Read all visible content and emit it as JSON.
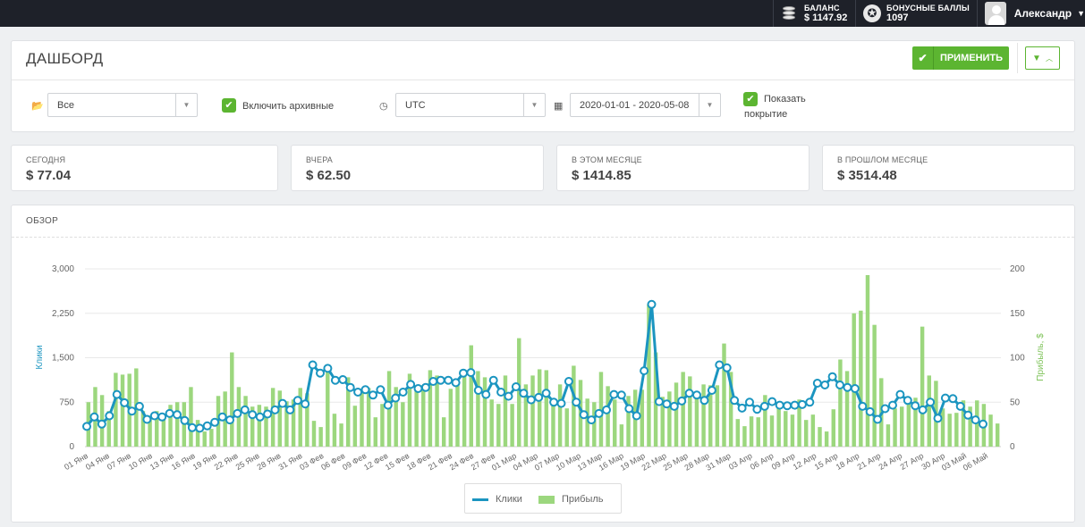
{
  "topbar": {
    "balance_label": "БАЛАНС",
    "balance_value": "$ 1147.92",
    "bonus_label": "БОНУСНЫЕ БАЛЛЫ",
    "bonus_value": "1097",
    "user_name": "Александр"
  },
  "header": {
    "title": "ДАШБОРД",
    "apply_label": "ПРИМЕНИТЬ"
  },
  "filters": {
    "folder_value": "Все",
    "include_archived_label": "Включить архивные",
    "include_archived_checked": true,
    "timezone_value": "UTC",
    "date_range_value": "2020-01-01 - 2020-05-08",
    "show_coverage_line1": "Показать",
    "show_coverage_line2": "покрытие",
    "show_coverage_checked": true
  },
  "stats": [
    {
      "label": "СЕГОДНЯ",
      "value": "$ 77.04"
    },
    {
      "label": "ВЧЕРА",
      "value": "$ 62.50"
    },
    {
      "label": "В ЭТОМ МЕСЯЦЕ",
      "value": "$ 1414.85"
    },
    {
      "label": "В ПРОШЛОМ МЕСЯЦЕ",
      "value": "$ 3514.48"
    }
  ],
  "overview": {
    "title": "ОБЗОР",
    "legend": {
      "clicks": "Клики",
      "profit": "Прибыль"
    }
  },
  "colors": {
    "topbar": "#1e2129",
    "accent_green": "#5cb531",
    "clicks_line": "#1b95c0",
    "profit_bars": "#9cd77e"
  },
  "chart_data": {
    "type": "bar",
    "ylabel_left": "Клики",
    "ylabel_right": "Прибыль, $",
    "left_axis": {
      "min": 0,
      "max": 3000,
      "ticks": [
        0,
        750,
        1500,
        2250,
        3000
      ],
      "tick_labels": [
        "0",
        "750",
        "1,500",
        "2,250",
        "3,000"
      ]
    },
    "right_axis": {
      "min": 0,
      "max": 200,
      "ticks": [
        0,
        50,
        100,
        150,
        200
      ],
      "tick_labels": [
        "0",
        "50",
        "100",
        "150",
        "200"
      ]
    },
    "grid": true,
    "legend_position": "bottom-center",
    "x_tick_labels": [
      "01 Янв",
      "04 Янв",
      "07 Янв",
      "10 Янв",
      "13 Янв",
      "16 Янв",
      "19 Янв",
      "22 Янв",
      "25 Янв",
      "28 Янв",
      "31 Янв",
      "03 Фев",
      "06 Фев",
      "09 Фев",
      "12 Фев",
      "15 Фев",
      "18 Фев",
      "21 Фев",
      "24 Фев",
      "27 Фев",
      "01 Мар",
      "04 Мар",
      "07 Мар",
      "10 Мар",
      "13 Мар",
      "16 Мар",
      "19 Мар",
      "22 Мар",
      "25 Мар",
      "28 Мар",
      "31 Мар",
      "03 Апр",
      "06 Апр",
      "09 Апр",
      "12 Апр",
      "15 Апр",
      "18 Апр",
      "21 Апр",
      "24 Апр",
      "27 Апр",
      "30 Апр",
      "03 Май",
      "06 Май"
    ],
    "series": [
      {
        "name": "Клики",
        "type": "line",
        "axis": "left",
        "values": [
          340,
          500,
          380,
          520,
          880,
          740,
          600,
          680,
          460,
          520,
          500,
          560,
          540,
          440,
          320,
          310,
          350,
          410,
          500,
          450,
          560,
          620,
          540,
          500,
          550,
          620,
          730,
          620,
          780,
          720,
          1380,
          1240,
          1320,
          1120,
          1130,
          1000,
          920,
          960,
          870,
          960,
          700,
          820,
          920,
          1050,
          980,
          1000,
          1100,
          1120,
          1120,
          1080,
          1240,
          1250,
          950,
          880,
          1120,
          920,
          850,
          1010,
          900,
          790,
          830,
          900,
          750,
          730,
          1100,
          750,
          540,
          450,
          560,
          620,
          880,
          870,
          640,
          520,
          1280,
          2400,
          760,
          720,
          680,
          770,
          900,
          870,
          780,
          950,
          1380,
          1330,
          780,
          650,
          750,
          630,
          680,
          760,
          700,
          690,
          700,
          710,
          750,
          1070,
          1040,
          1180,
          1040,
          1000,
          980,
          680,
          590,
          460,
          640,
          700,
          880,
          780,
          690,
          620,
          750,
          480,
          820,
          810,
          680,
          530,
          450,
          380
        ]
      },
      {
        "name": "Прибыль",
        "type": "bar",
        "axis": "right",
        "values": [
          50,
          67,
          58,
          40,
          83,
          81,
          82,
          88,
          40,
          35,
          40,
          35,
          47,
          50,
          50,
          67,
          30,
          17,
          20,
          57,
          62,
          106,
          67,
          57,
          45,
          47,
          45,
          66,
          63,
          51,
          53,
          66,
          60,
          29,
          22,
          88,
          37,
          26,
          78,
          46,
          65,
          66,
          33,
          48,
          85,
          67,
          50,
          82,
          69,
          69,
          86,
          80,
          33,
          65,
          70,
          80,
          114,
          85,
          78,
          53,
          48,
          80,
          48,
          122,
          70,
          80,
          87,
          86,
          50,
          70,
          43,
          91,
          75,
          54,
          50,
          84,
          68,
          53,
          25,
          57,
          64,
          64,
          160,
          106,
          56,
          62,
          72,
          84,
          79,
          60,
          70,
          69,
          69,
          116,
          84,
          31,
          23,
          34,
          33,
          58,
          35,
          46,
          40,
          36,
          53,
          30,
          36,
          22,
          17,
          42,
          98,
          85,
          150,
          153,
          193,
          137,
          77,
          25,
          43,
          45,
          53,
          55,
          135,
          80,
          74,
          43,
          37,
          38,
          52,
          45,
          52,
          48,
          36,
          26
        ]
      }
    ]
  }
}
